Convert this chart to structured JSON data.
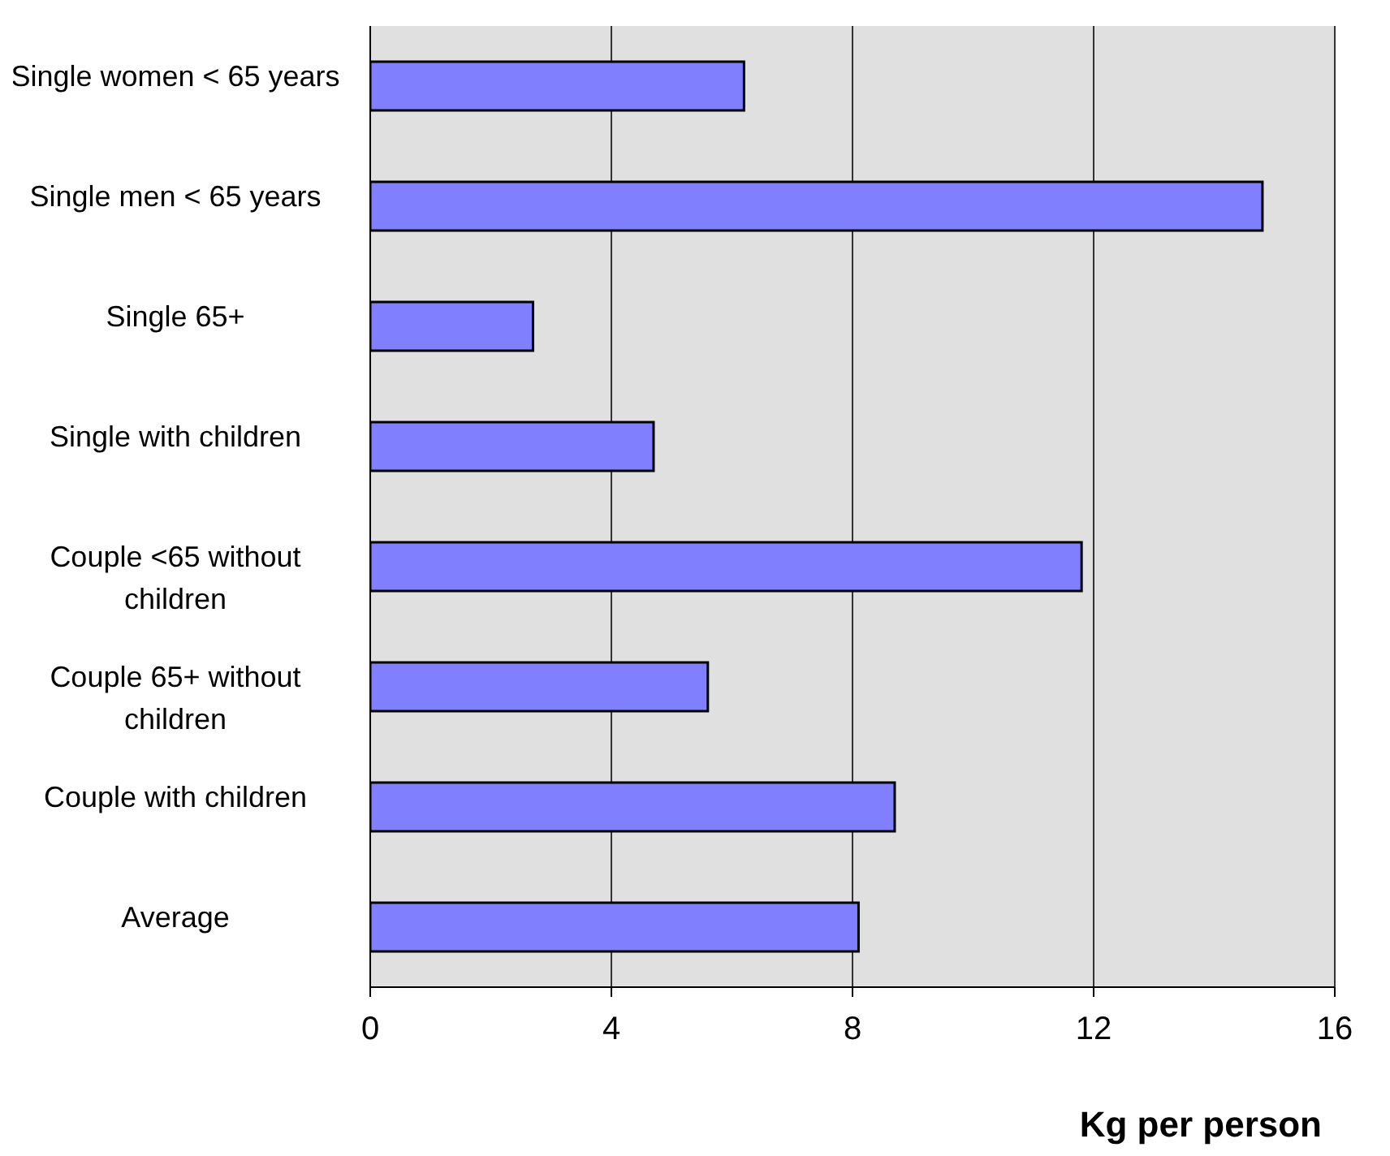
{
  "chart_data": {
    "type": "bar",
    "orientation": "horizontal",
    "xlabel": "Kg per person",
    "categories": [
      "Single women < 65 years",
      "Single men < 65 years",
      "Single 65+",
      "Single with children",
      "Couple <65 without children",
      "Couple 65+ without children",
      "Couple with children",
      "Average"
    ],
    "values": [
      6.2,
      14.8,
      2.7,
      4.7,
      11.8,
      5.6,
      8.7,
      8.1
    ],
    "color": "#8080ff",
    "xlim": [
      0,
      16
    ],
    "xticks": [
      0,
      4,
      8,
      12,
      16
    ],
    "grid": "x",
    "legend": false
  }
}
